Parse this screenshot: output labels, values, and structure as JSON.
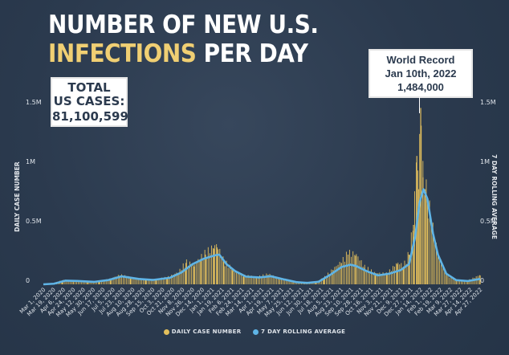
{
  "title": {
    "line1": "NUMBER OF NEW U.S.",
    "line2_highlight": "INFECTIONS",
    "line2_rest": " PER DAY"
  },
  "total_box": {
    "label_line1": "TOTAL",
    "label_line2": "US CASES:",
    "value": "81,100,599"
  },
  "record_box": {
    "line1": "World Record",
    "line2": "Jan 10th, 2022",
    "line3": "1,484,000"
  },
  "colors": {
    "background": "#2b3a4e",
    "daily_bars": "#e3bf5c",
    "rolling_average": "#5fb4e6",
    "title_highlight": "#f0cf73"
  },
  "chart_data": {
    "type": "bar",
    "ylabel": "DAILY CASE NUMBER",
    "ylabel_right": "7 DAY ROLLING AVERAGE",
    "ylim": [
      0,
      1500000
    ],
    "yticks": [
      {
        "value": 0,
        "label": "0"
      },
      {
        "value": 500000,
        "label": "0.5M"
      },
      {
        "value": 1000000,
        "label": "1M"
      },
      {
        "value": 1500000,
        "label": "1.5M"
      }
    ],
    "xlim": [
      "2020-03-01",
      "2022-04-27"
    ],
    "x_tick_labels": [
      "Mar 1, 2020",
      "Mar 19, 2020",
      "Apr 6, 2020",
      "Apr 24, 2020",
      "May 12, 2020",
      "May 30, 2020",
      "Jun 17, 2020",
      "Jul 5, 2020",
      "Jul 23, 2020",
      "Aug 10, 2020",
      "Aug 28, 2020",
      "Sep 15, 2020",
      "Oct 3, 2020",
      "Oct 21, 2020",
      "Nov 8, 2020",
      "Nov 26, 2020",
      "Dec 14, 2020",
      "Jan 1, 2021",
      "Jan 19, 2021",
      "Feb 6, 2021",
      "Feb 24, 2021",
      "Mar 14, 2021",
      "Apr 1, 2021",
      "Apr 19, 2021",
      "May 7, 2021",
      "May 25, 2021",
      "Jun 12, 2021",
      "Jun 30, 2021",
      "Jul 18, 2021",
      "Aug 5, 2021",
      "Aug 23, 2021",
      "Sep 10, 2021",
      "Sep 28, 2021",
      "Oct 16, 2021",
      "Nov 3, 2021",
      "Nov 21, 2021",
      "Dec 9, 2021",
      "Dec 27, 2021",
      "Jan 14, 2022",
      "Feb 1, 2022",
      "Feb 19, 2022",
      "Mar 9, 2022",
      "Mar 27, 2022",
      "Apr 14, 2022",
      "Apr 27, 2022"
    ],
    "legend": [
      {
        "label": "DAILY CASE NUMBER",
        "color": "#e3bf5c"
      },
      {
        "label": "7 DAY ROLLING AVERAGE",
        "color": "#5fb4e6"
      }
    ],
    "legend_position": "bottom-center",
    "grid": false,
    "series": [
      {
        "name": "DAILY CASE NUMBER",
        "points": [
          [
            "2020-03-01",
            0
          ],
          [
            "2020-03-20",
            10000
          ],
          [
            "2020-04-04",
            32000
          ],
          [
            "2020-04-24",
            30000
          ],
          [
            "2020-05-20",
            22000
          ],
          [
            "2020-06-10",
            22000
          ],
          [
            "2020-06-30",
            45000
          ],
          [
            "2020-07-17",
            75000
          ],
          [
            "2020-08-05",
            55000
          ],
          [
            "2020-09-01",
            40000
          ],
          [
            "2020-09-20",
            42000
          ],
          [
            "2020-10-10",
            55000
          ],
          [
            "2020-10-30",
            95000
          ],
          [
            "2020-11-13",
            180000
          ],
          [
            "2020-11-28",
            150000
          ],
          [
            "2020-12-10",
            215000
          ],
          [
            "2020-12-18",
            250000
          ],
          [
            "2021-01-02",
            300000
          ],
          [
            "2021-01-08",
            310000
          ],
          [
            "2021-01-20",
            190000
          ],
          [
            "2021-02-05",
            120000
          ],
          [
            "2021-02-25",
            70000
          ],
          [
            "2021-03-20",
            60000
          ],
          [
            "2021-04-10",
            80000
          ],
          [
            "2021-05-01",
            50000
          ],
          [
            "2021-05-25",
            25000
          ],
          [
            "2021-06-15",
            12000
          ],
          [
            "2021-07-05",
            18000
          ],
          [
            "2021-07-20",
            55000
          ],
          [
            "2021-08-05",
            120000
          ],
          [
            "2021-08-20",
            180000
          ],
          [
            "2021-09-01",
            250000
          ],
          [
            "2021-09-15",
            240000
          ],
          [
            "2021-10-01",
            140000
          ],
          [
            "2021-10-20",
            90000
          ],
          [
            "2021-11-10",
            85000
          ],
          [
            "2021-11-29",
            170000
          ],
          [
            "2021-12-10",
            150000
          ],
          [
            "2021-12-20",
            250000
          ],
          [
            "2021-12-28",
            500000
          ],
          [
            "2022-01-03",
            1080000
          ],
          [
            "2022-01-06",
            800000
          ],
          [
            "2022-01-10",
            1484000
          ],
          [
            "2022-01-14",
            900000
          ],
          [
            "2022-01-18",
            800000
          ],
          [
            "2022-01-22",
            700000
          ],
          [
            "2022-02-01",
            450000
          ],
          [
            "2022-02-10",
            250000
          ],
          [
            "2022-02-25",
            80000
          ],
          [
            "2022-03-15",
            35000
          ],
          [
            "2022-04-05",
            30000
          ],
          [
            "2022-04-27",
            75000
          ]
        ]
      },
      {
        "name": "7 DAY ROLLING AVERAGE",
        "points": [
          [
            "2020-03-01",
            0
          ],
          [
            "2020-03-20",
            5000
          ],
          [
            "2020-04-10",
            31000
          ],
          [
            "2020-05-01",
            28000
          ],
          [
            "2020-06-01",
            21000
          ],
          [
            "2020-06-25",
            35000
          ],
          [
            "2020-07-20",
            67000
          ],
          [
            "2020-08-20",
            45000
          ],
          [
            "2020-09-15",
            37000
          ],
          [
            "2020-10-15",
            55000
          ],
          [
            "2020-11-05",
            100000
          ],
          [
            "2020-11-25",
            170000
          ],
          [
            "2020-12-15",
            215000
          ],
          [
            "2021-01-05",
            245000
          ],
          [
            "2021-01-12",
            250000
          ],
          [
            "2021-01-25",
            170000
          ],
          [
            "2021-02-10",
            110000
          ],
          [
            "2021-03-01",
            65000
          ],
          [
            "2021-03-25",
            58000
          ],
          [
            "2021-04-15",
            68000
          ],
          [
            "2021-05-10",
            40000
          ],
          [
            "2021-06-01",
            18000
          ],
          [
            "2021-06-20",
            12000
          ],
          [
            "2021-07-10",
            22000
          ],
          [
            "2021-07-31",
            80000
          ],
          [
            "2021-08-20",
            145000
          ],
          [
            "2021-09-05",
            165000
          ],
          [
            "2021-09-15",
            155000
          ],
          [
            "2021-10-05",
            110000
          ],
          [
            "2021-10-25",
            75000
          ],
          [
            "2021-11-15",
            90000
          ],
          [
            "2021-12-05",
            120000
          ],
          [
            "2021-12-20",
            170000
          ],
          [
            "2021-12-31",
            400000
          ],
          [
            "2022-01-08",
            690000
          ],
          [
            "2022-01-15",
            800000
          ],
          [
            "2022-01-22",
            720000
          ],
          [
            "2022-02-01",
            430000
          ],
          [
            "2022-02-10",
            250000
          ],
          [
            "2022-02-25",
            90000
          ],
          [
            "2022-03-15",
            35000
          ],
          [
            "2022-04-05",
            28000
          ],
          [
            "2022-04-27",
            45000
          ]
        ]
      }
    ]
  }
}
